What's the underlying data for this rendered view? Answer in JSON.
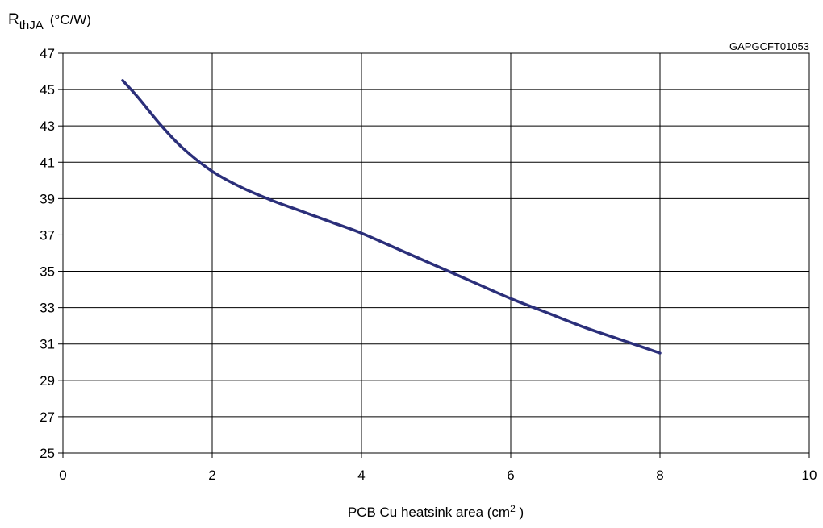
{
  "chart_data": {
    "type": "line",
    "code": "GAPGCFT01053",
    "ylabel": {
      "main": "R",
      "sub": "thJA",
      "unit": "(°C/W)"
    },
    "xlabel": {
      "text": "PCB Cu heatsink area (cm",
      "sup": "2",
      "tail": " )"
    },
    "xlim": [
      0,
      10
    ],
    "ylim": [
      25,
      47
    ],
    "xticks": [
      0,
      2,
      4,
      6,
      8,
      10
    ],
    "yticks": [
      25,
      27,
      29,
      31,
      33,
      35,
      37,
      39,
      41,
      43,
      45,
      47
    ],
    "grid": true,
    "line_color": "#2b2f7a",
    "series": [
      {
        "x": [
          0.8,
          1.0,
          1.3,
          1.6,
          2.0,
          2.4,
          2.8,
          3.2,
          3.6,
          4.0,
          4.5,
          5.0,
          5.5,
          6.0,
          6.5,
          7.0,
          7.5,
          8.0
        ],
        "y": [
          45.5,
          44.6,
          43.1,
          41.8,
          40.5,
          39.6,
          38.9,
          38.3,
          37.7,
          37.1,
          36.2,
          35.3,
          34.4,
          33.5,
          32.7,
          31.9,
          31.2,
          30.5
        ]
      }
    ]
  }
}
